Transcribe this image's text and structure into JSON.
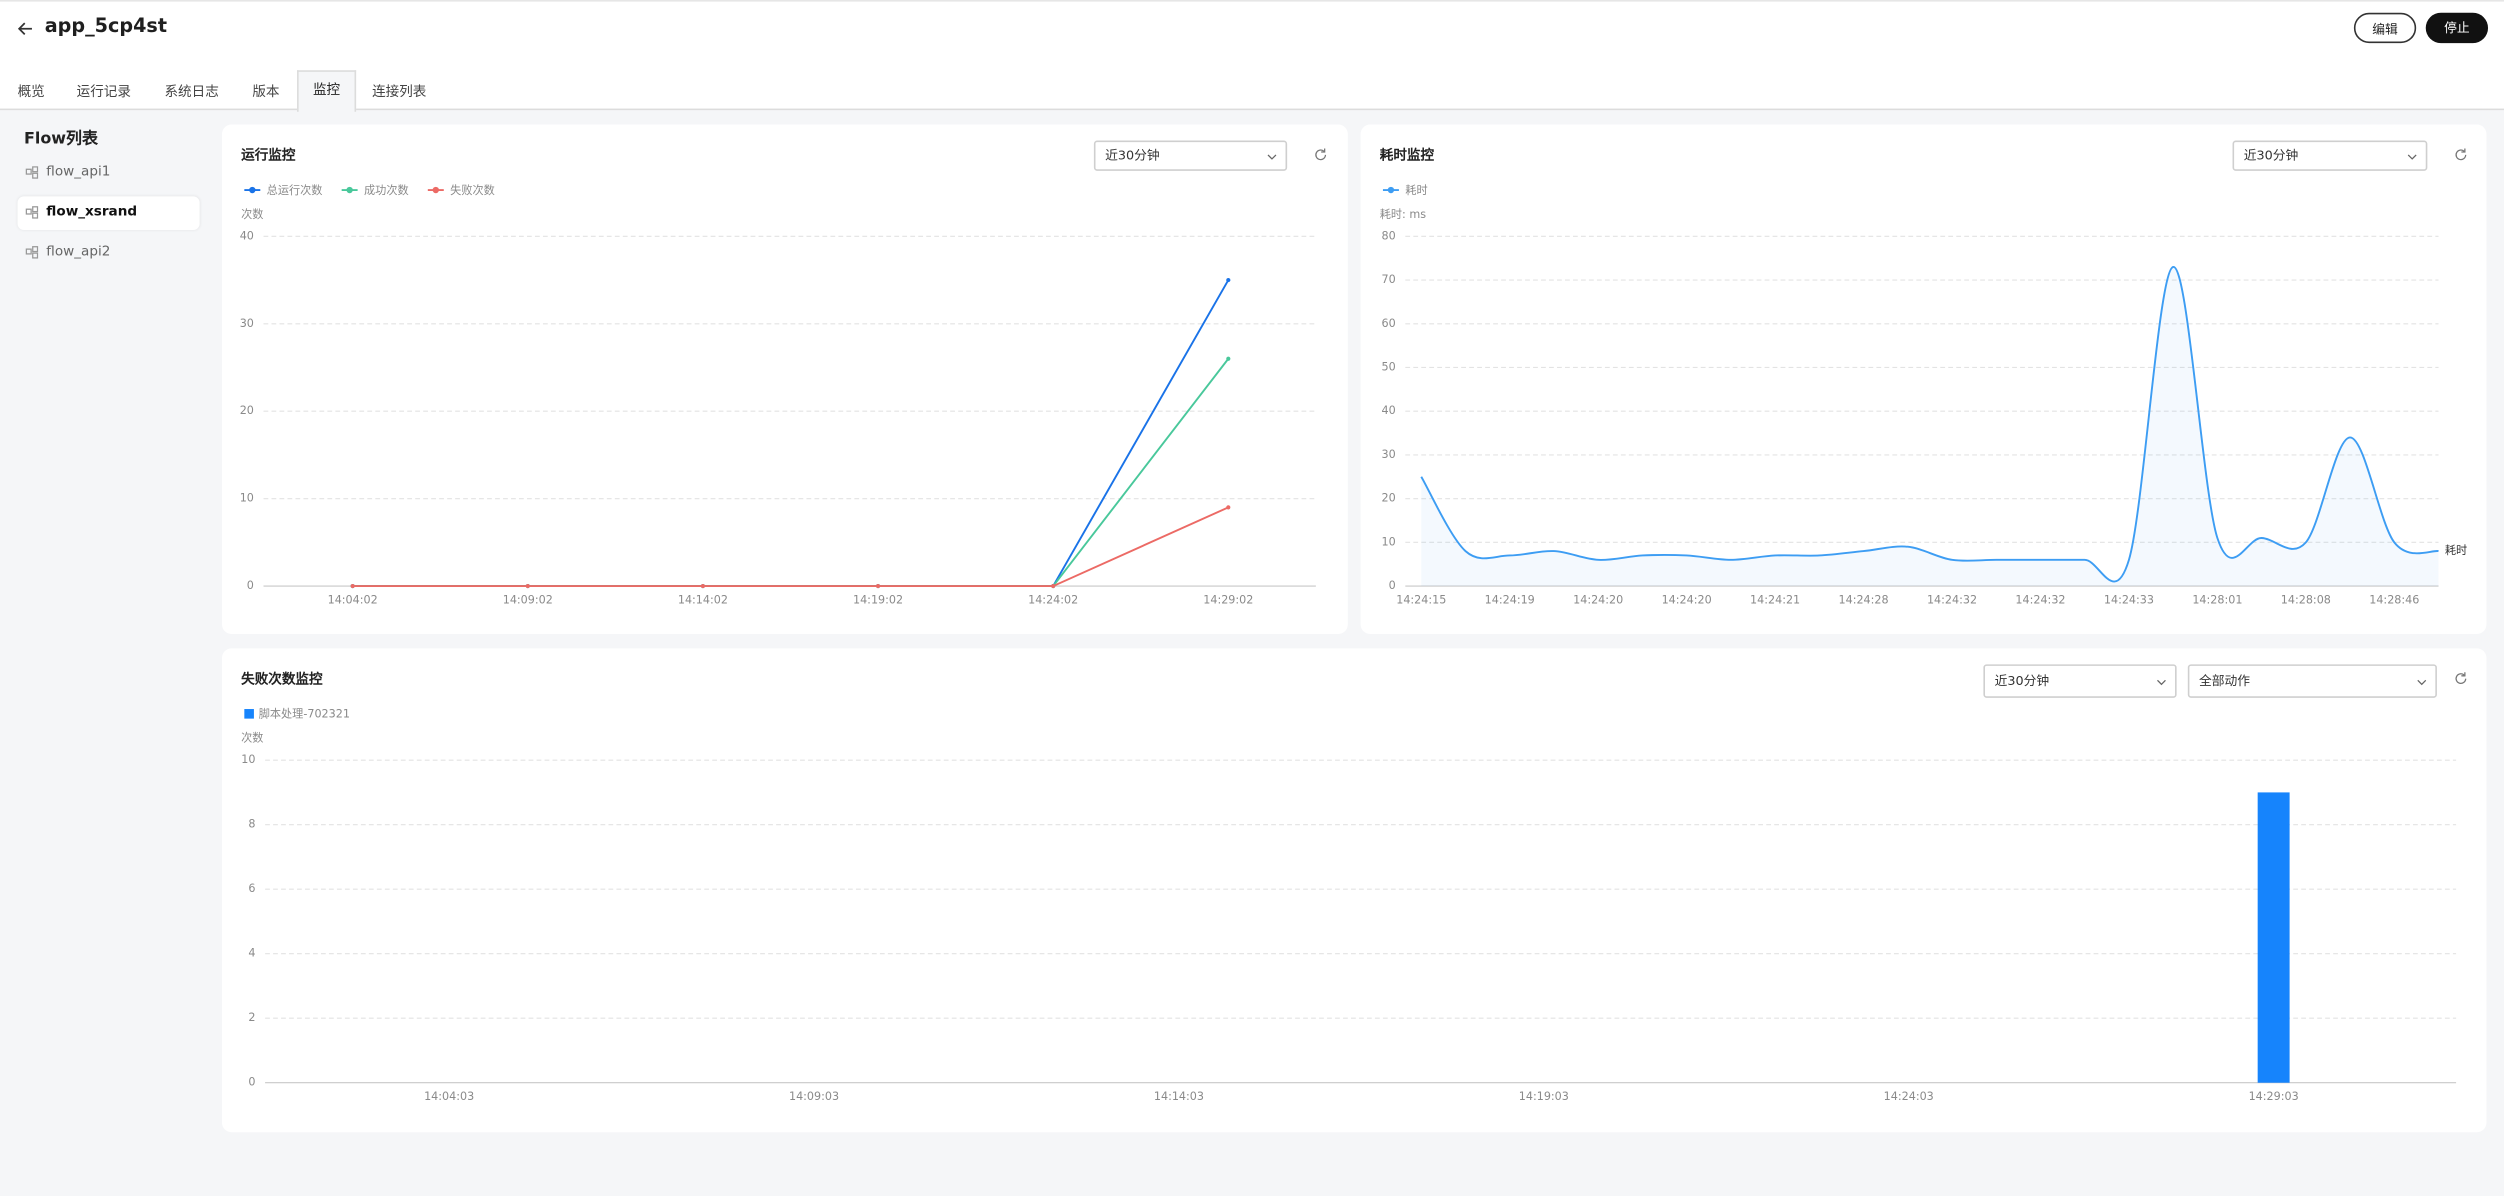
{
  "header": {
    "title": "app_5cp4st",
    "buttons": [
      "编辑",
      "停止"
    ]
  },
  "tabs": [
    "概览",
    "运行记录",
    "系统日志",
    "版本",
    "监控",
    "连接列表"
  ],
  "sidebar": {
    "title": "Flow列表",
    "items": [
      "flow_api1",
      "flow_xsrand",
      "flow_api2"
    ]
  },
  "chart_data": [
    {
      "type": "line",
      "title": "运行监控",
      "filters": [
        "近30分钟"
      ],
      "y_label": "次数",
      "categories": [
        "14:04:02",
        "14:09:02",
        "14:14:02",
        "14:19:02",
        "14:24:02",
        "14:29:02"
      ],
      "series": [
        {
          "name": "总运行次数",
          "color": "#1a73e8",
          "values": [
            0,
            0,
            0,
            0,
            0,
            35
          ]
        },
        {
          "name": "成功次数",
          "color": "#49c89b",
          "values": [
            0,
            0,
            0,
            0,
            0,
            26
          ]
        },
        {
          "name": "失败次数",
          "color": "#ec6a65",
          "values": [
            0,
            0,
            0,
            0,
            0,
            9
          ]
        }
      ],
      "ylim": [
        0,
        40
      ],
      "yticks": [
        0,
        10,
        20,
        30,
        40
      ],
      "grid": true
    },
    {
      "type": "line",
      "title": "耗时监控",
      "filters": [
        "近30分钟"
      ],
      "y_label": "耗时: ms",
      "smooth": true,
      "area": true,
      "categories": [
        "14:24:15",
        null,
        "14:24:19",
        null,
        "14:24:20",
        null,
        "14:24:20",
        null,
        "14:24:21",
        null,
        "14:24:28",
        null,
        "14:24:32",
        null,
        "14:24:32",
        null,
        "14:24:33",
        null,
        "14:28:01",
        null,
        "14:28:08",
        null,
        "14:28:46",
        null
      ],
      "series": [
        {
          "name": "耗时",
          "color": "#3d9df3",
          "values": [
            25,
            8,
            7,
            8,
            6,
            7,
            7,
            6,
            7,
            7,
            8,
            9,
            6,
            6,
            6,
            6,
            6,
            73,
            11,
            11,
            10,
            34,
            10,
            8
          ]
        }
      ],
      "ylim": [
        0,
        80
      ],
      "yticks": [
        0,
        10,
        20,
        30,
        40,
        50,
        60,
        70,
        80
      ],
      "grid": true
    },
    {
      "type": "bar",
      "title": "失败次数监控",
      "filters": [
        "近30分钟",
        "全部动作"
      ],
      "y_label": "次数",
      "categories": [
        "14:04:03",
        "14:09:03",
        "14:14:03",
        "14:19:03",
        "14:24:03",
        "14:29:03"
      ],
      "series": [
        {
          "name": "脚本处理-702321",
          "color": "#1684fc",
          "values": [
            0,
            0,
            0,
            0,
            0,
            9
          ]
        }
      ],
      "ylim": [
        0,
        10
      ],
      "yticks": [
        0,
        2,
        4,
        6,
        8,
        10
      ],
      "grid": true
    }
  ]
}
